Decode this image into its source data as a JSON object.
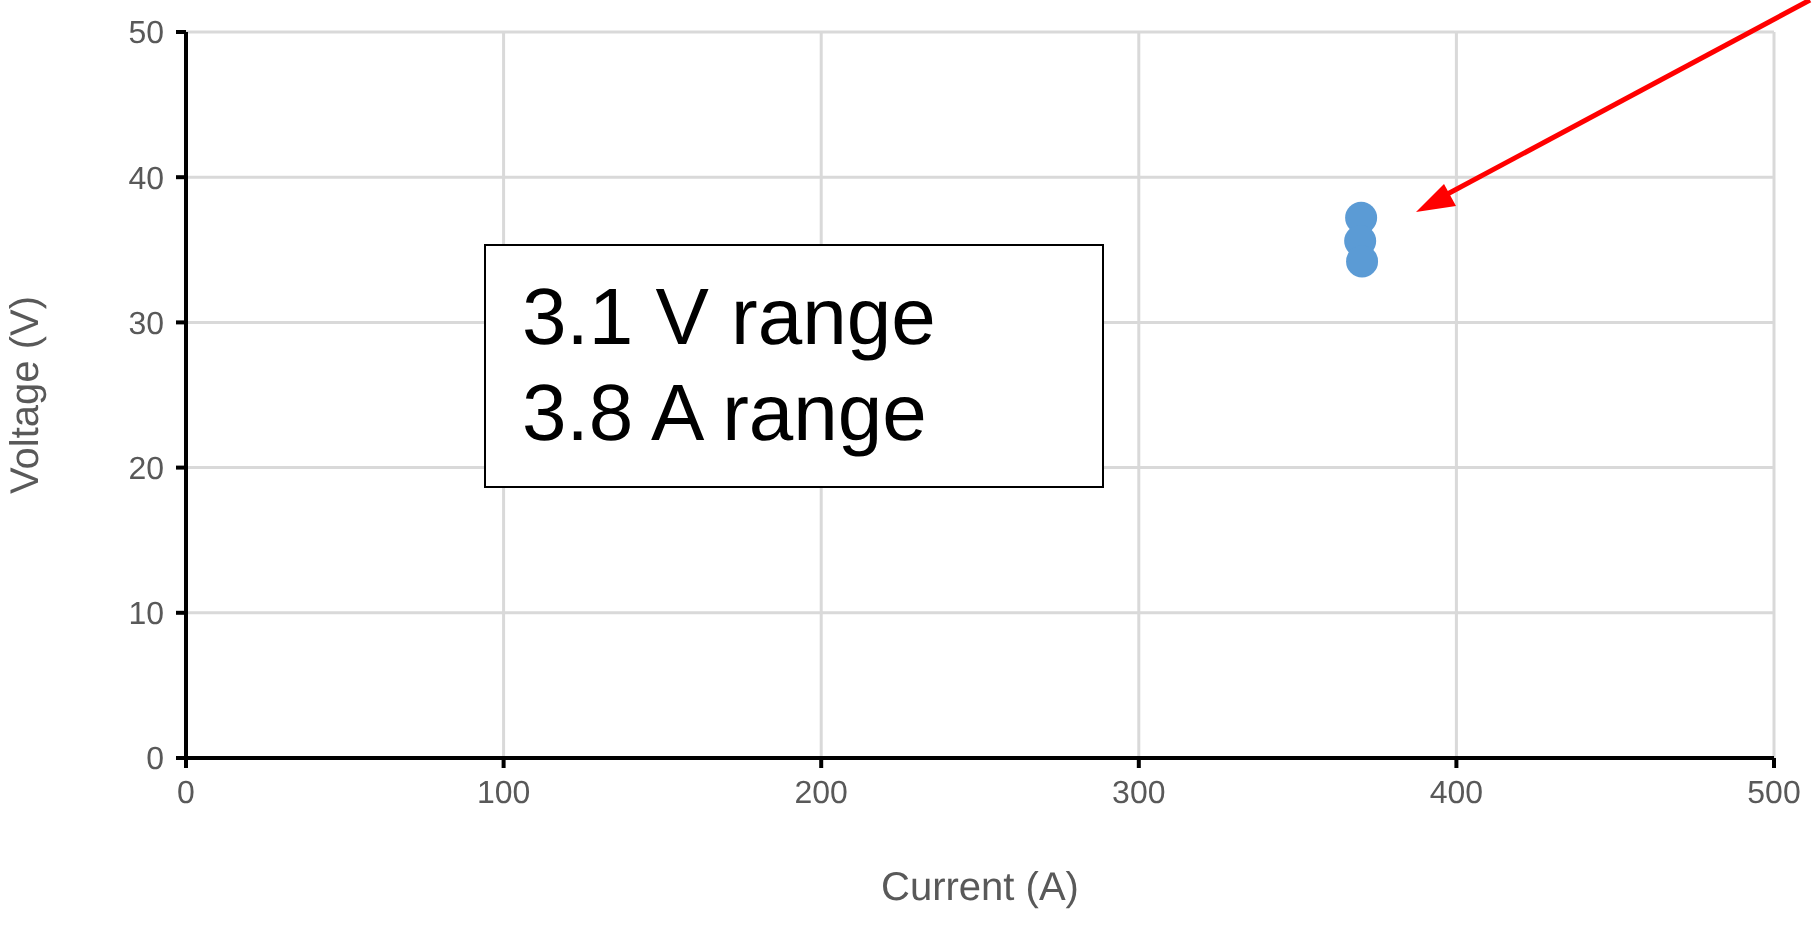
{
  "chart_data": {
    "type": "scatter",
    "xlabel": "Current (A)",
    "ylabel": "Voltage (V)",
    "x": [
      370,
      369.7,
      370.3
    ],
    "values": [
      37.2,
      35.6,
      34.2
    ],
    "color": "#5b9bd5",
    "marker": "circle",
    "xlim": [
      0,
      500
    ],
    "xticks": [
      0,
      100,
      200,
      300,
      400,
      500
    ],
    "ylim": [
      0,
      50
    ],
    "yticks": [
      0,
      10,
      20,
      30,
      40,
      50
    ],
    "grid": true,
    "annotations": [
      "3.1 V range",
      "3.8 A range"
    ]
  }
}
